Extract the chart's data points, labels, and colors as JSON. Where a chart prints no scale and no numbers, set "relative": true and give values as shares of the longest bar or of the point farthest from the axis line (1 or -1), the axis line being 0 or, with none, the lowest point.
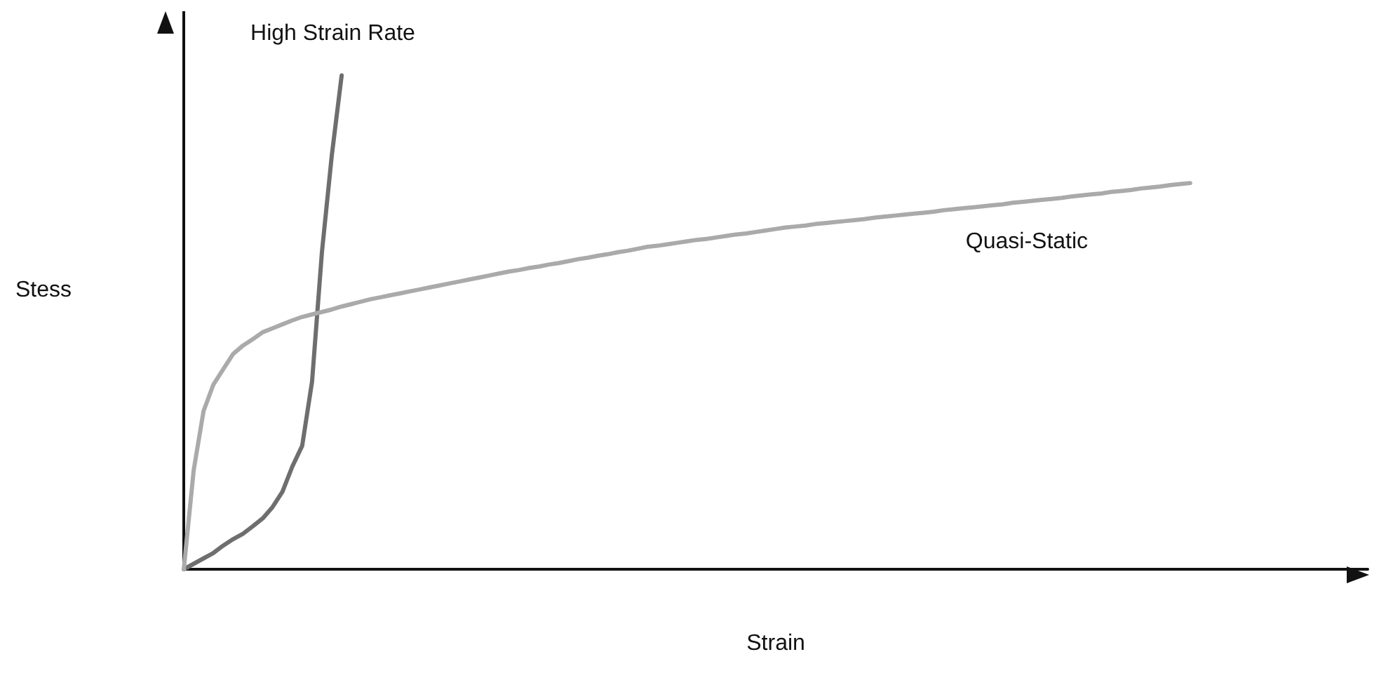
{
  "chart_data": {
    "type": "line",
    "relative": true,
    "xlabel": "Strain",
    "ylabel": "Stess",
    "legend": false,
    "grid": false,
    "marker": "none",
    "line_style": "solid",
    "categories": [
      null,
      null,
      null,
      null,
      null,
      null,
      null,
      null,
      null,
      null,
      null,
      null,
      null,
      null,
      null,
      null,
      null,
      null,
      null,
      null,
      null,
      null,
      null,
      null,
      null,
      null,
      null,
      null,
      null,
      null,
      null,
      null,
      null,
      null,
      null,
      null,
      null,
      null,
      null,
      null,
      null,
      null,
      null,
      null,
      null,
      null,
      null,
      null,
      null,
      null,
      null,
      null,
      null,
      null,
      null,
      null,
      null,
      null,
      null,
      null,
      null,
      null,
      null,
      null,
      null,
      null,
      null,
      null,
      null,
      null,
      null,
      null,
      null,
      null,
      null,
      null,
      null,
      null,
      null,
      null,
      null,
      null,
      null,
      null,
      null,
      null,
      null,
      null,
      null,
      null,
      null,
      null,
      null,
      null,
      null,
      null,
      null,
      null,
      null,
      null,
      null,
      null,
      null,
      null,
      null,
      null,
      null,
      null,
      null,
      null,
      null,
      null,
      null,
      null,
      null,
      null,
      null,
      null,
      null,
      null,
      null
    ],
    "series": [
      {
        "name": "High Strain Rate",
        "color": "#6e6e6e",
        "values": [
          0,
          0.011,
          0.022,
          0.033,
          0.048,
          0.061,
          0.072,
          0.087,
          0.103,
          0.126,
          0.157,
          0.208,
          0.25,
          0.38,
          0.642,
          0.838,
          1,
          null,
          null,
          null,
          null,
          null,
          null,
          null,
          null,
          null,
          null,
          null,
          null,
          null,
          null,
          null,
          null,
          null,
          null,
          null,
          null,
          null,
          null,
          null,
          null,
          null,
          null,
          null,
          null,
          null,
          null,
          null,
          null,
          null,
          null,
          null,
          null,
          null,
          null,
          null,
          null,
          null,
          null,
          null,
          null,
          null,
          null,
          null,
          null,
          null,
          null,
          null,
          null,
          null,
          null,
          null,
          null,
          null,
          null,
          null,
          null,
          null,
          null,
          null,
          null,
          null,
          null,
          null,
          null,
          null,
          null,
          null,
          null,
          null,
          null,
          null,
          null,
          null,
          null,
          null,
          null,
          null,
          null,
          null,
          null,
          null,
          null,
          null,
          null,
          null,
          null,
          null,
          null,
          null,
          null,
          null,
          null,
          null,
          null,
          null,
          null,
          null,
          null,
          null,
          null
        ]
      },
      {
        "name": "Quasi-Static",
        "color": "#aaaaaa",
        "values": [
          0,
          0.2,
          0.32,
          0.374,
          0.405,
          0.436,
          0.453,
          0.466,
          0.48,
          0.488,
          0.496,
          0.504,
          0.511,
          0.516,
          0.521,
          0.526,
          0.532,
          0.537,
          0.542,
          0.547,
          0.551,
          0.555,
          0.559,
          0.563,
          0.567,
          0.571,
          0.575,
          0.579,
          0.583,
          0.587,
          0.591,
          0.595,
          0.599,
          0.603,
          0.606,
          0.61,
          0.613,
          0.617,
          0.62,
          0.624,
          0.628,
          0.631,
          0.635,
          0.638,
          0.642,
          0.645,
          0.649,
          0.653,
          0.655,
          0.658,
          0.661,
          0.664,
          0.667,
          0.669,
          0.672,
          0.675,
          0.678,
          0.68,
          0.683,
          0.686,
          0.689,
          0.692,
          0.694,
          0.696,
          0.699,
          0.701,
          0.703,
          0.705,
          0.707,
          0.709,
          0.712,
          0.714,
          0.716,
          0.718,
          0.72,
          0.722,
          0.724,
          0.727,
          0.729,
          0.731,
          0.733,
          0.735,
          0.737,
          0.739,
          0.742,
          0.744,
          0.746,
          0.748,
          0.75,
          0.752,
          0.755,
          0.757,
          0.759,
          0.761,
          0.764,
          0.766,
          0.768,
          0.771,
          0.773,
          0.775,
          0.778,
          0.78,
          0.782,
          null,
          null,
          null,
          null,
          null,
          null,
          null,
          null,
          null,
          null,
          null,
          null,
          null,
          null,
          null,
          null,
          null,
          null
        ]
      }
    ]
  }
}
